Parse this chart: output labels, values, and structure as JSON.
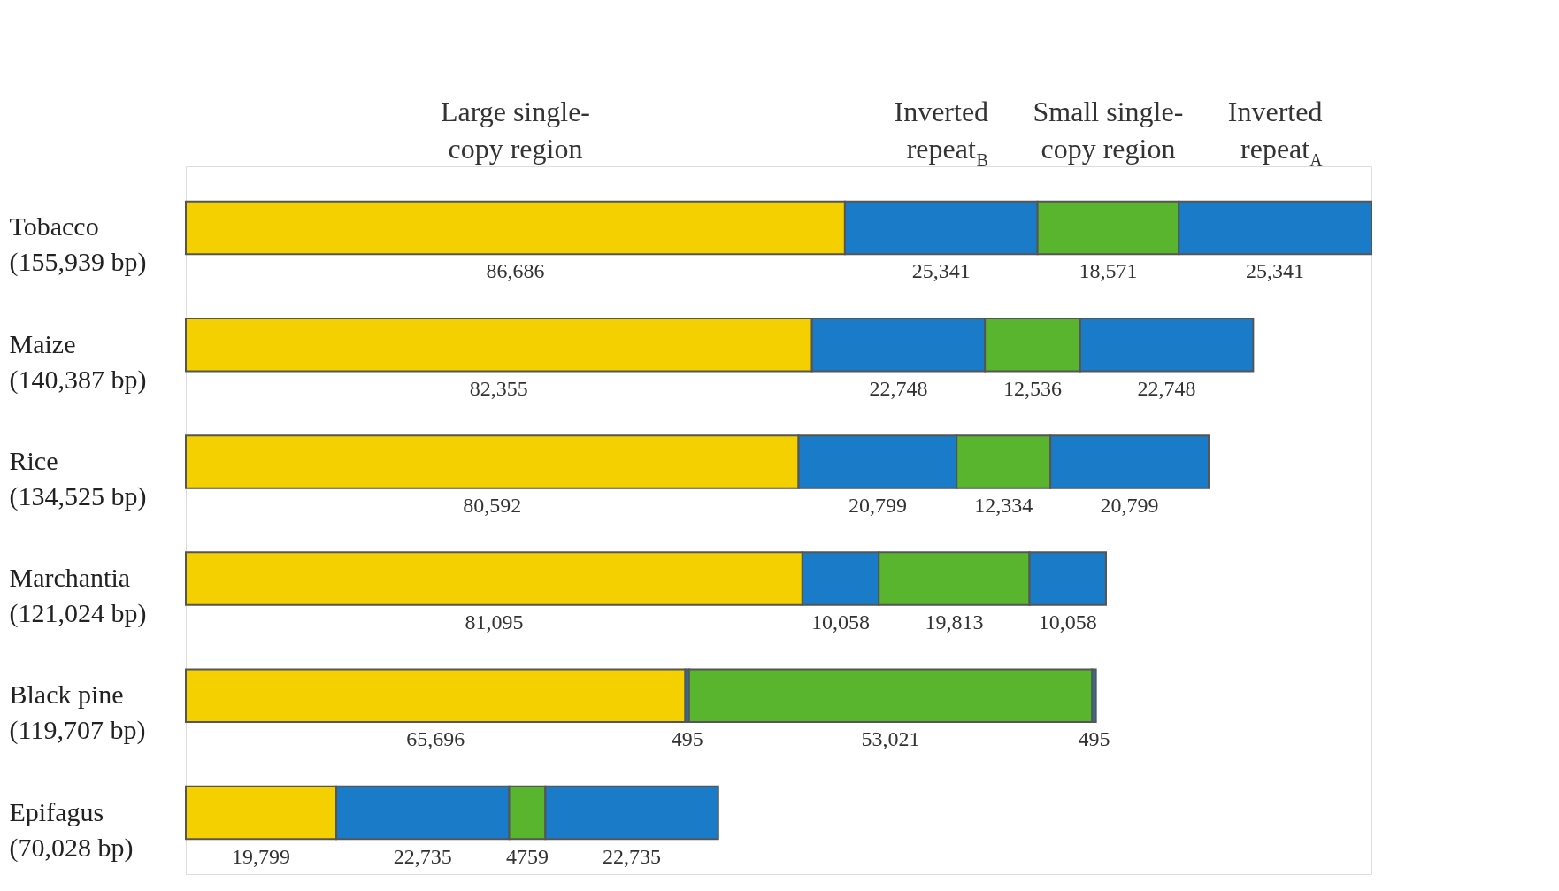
{
  "chart_data": {
    "type": "bar",
    "orientation": "horizontal",
    "stacked": true,
    "legend": false,
    "grid": false,
    "tick_labels": "y",
    "xlim": [
      0,
      155939
    ],
    "categories": [
      "Tobacco\n(155,939 bp)",
      "Maize\n(140,387 bp)",
      "Rice\n(134,525 bp)",
      "Marchantia\n(121,024 bp)",
      "Black pine\n(119,707 bp)",
      "Epifagus\n(70,028 bp)"
    ],
    "series": [
      {
        "name": "Large single-\ncopy region",
        "color": "#f5d000",
        "values": [
          86686,
          82355,
          80592,
          81095,
          65696,
          19799
        ],
        "value_labels": [
          "86,686",
          "82,355",
          "80,592",
          "81,095",
          "65,696",
          "19,799"
        ]
      },
      {
        "name": "Inverted\nrepeat$_{B}$",
        "color": "#1a7cc9",
        "values": [
          25341,
          22748,
          20799,
          10058,
          495,
          22735
        ],
        "value_labels": [
          "25,341",
          "22,748",
          "20,799",
          "10,058",
          "495",
          "22,735"
        ]
      },
      {
        "name": "Small single-\ncopy region",
        "color": "#5ab52e",
        "values": [
          18571,
          12536,
          12334,
          19813,
          53021,
          4759
        ],
        "value_labels": [
          "18,571",
          "12,536",
          "12,334",
          "19,813",
          "53,021",
          "4759"
        ]
      },
      {
        "name": "Inverted\nrepeat$_{A}$",
        "color": "#1a7cc9",
        "values": [
          25341,
          22748,
          20799,
          10058,
          495,
          22735
        ],
        "value_labels": [
          "25,341",
          "22,748",
          "20,799",
          "10,058",
          "495",
          "22,735"
        ]
      }
    ]
  }
}
